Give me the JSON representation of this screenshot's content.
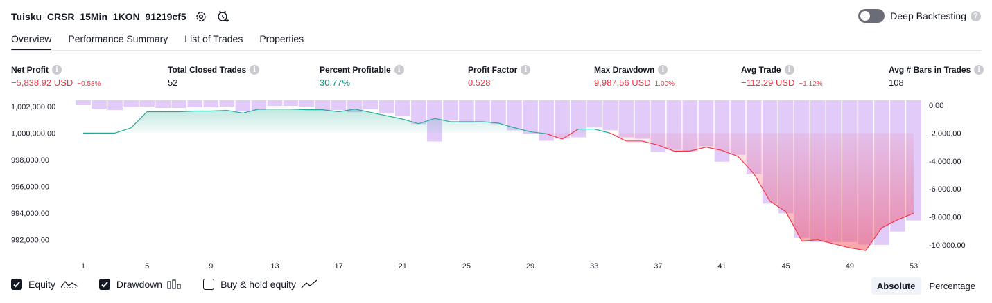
{
  "header": {
    "title": "Tuisku_CRSR_15Min_1KON_91219cf5"
  },
  "deep_backtesting": {
    "label": "Deep Backtesting",
    "help": "?"
  },
  "tabs": [
    {
      "label": "Overview"
    },
    {
      "label": "Performance Summary"
    },
    {
      "label": "List of Trades"
    },
    {
      "label": "Properties"
    }
  ],
  "metrics": [
    {
      "label": "Net Profit",
      "value": "−5,838.92 USD",
      "sub": "−0.58%",
      "color": "red"
    },
    {
      "label": "Total Closed Trades",
      "value": "52",
      "sub": "",
      "color": "dark"
    },
    {
      "label": "Percent Profitable",
      "value": "30.77%",
      "sub": "",
      "color": "green"
    },
    {
      "label": "Profit Factor",
      "value": "0.528",
      "sub": "",
      "color": "red"
    },
    {
      "label": "Max Drawdown",
      "value": "9,987.56 USD",
      "sub": "1.00%",
      "color": "red"
    },
    {
      "label": "Avg Trade",
      "value": "−112.29 USD",
      "sub": "−1.12%",
      "color": "red"
    },
    {
      "label": "Avg # Bars in Trades",
      "value": "108",
      "sub": "",
      "color": "dark"
    }
  ],
  "info_glyph": "i",
  "legend": {
    "equity": {
      "label": "Equity",
      "checked": true
    },
    "drawdown": {
      "label": "Drawdown",
      "checked": true
    },
    "buyhold": {
      "label": "Buy & hold equity",
      "checked": false
    }
  },
  "modes": {
    "absolute": "Absolute",
    "percentage": "Percentage",
    "selected": "Absolute"
  },
  "colors": {
    "equity_up_line": "#22ab94",
    "equity_down_line": "#f23645",
    "drawdown_bar": "#cfa8f5",
    "red": "#f23645",
    "green": "#089981"
  },
  "chart_data": {
    "type": "line",
    "x_ticks": [
      1,
      5,
      9,
      13,
      17,
      21,
      25,
      29,
      33,
      37,
      41,
      45,
      49,
      53
    ],
    "left_axis": {
      "ticks": [
        "1,002,000.00",
        "1,000,000.00",
        "998,000.00",
        "996,000.00",
        "994,000.00",
        "992,000.00"
      ],
      "range": [
        991100,
        1002300
      ]
    },
    "right_axis": {
      "ticks": [
        "0.00",
        "-2,000.00",
        "-4,000.00",
        "-6,000.00",
        "-8,000.00",
        "-10,000.00"
      ],
      "range": [
        -10500,
        200
      ]
    },
    "series": [
      {
        "name": "Equity",
        "x": [
          1,
          2,
          3,
          4,
          5,
          6,
          7,
          8,
          9,
          10,
          11,
          12,
          13,
          14,
          15,
          16,
          17,
          18,
          19,
          20,
          21,
          22,
          23,
          24,
          25,
          26,
          27,
          28,
          29,
          30,
          31,
          32,
          33,
          34,
          35,
          36,
          37,
          38,
          39,
          40,
          41,
          42,
          43,
          44,
          45,
          46,
          47,
          48,
          49,
          50,
          51,
          52,
          53
        ],
        "values": [
          1000000,
          1000000,
          1000000,
          1000400,
          1001600,
          1001600,
          1001600,
          1001650,
          1001650,
          1001700,
          1001500,
          1001800,
          1001800,
          1001800,
          1001750,
          1001750,
          1001600,
          1001800,
          1001550,
          1001300,
          1001050,
          1000700,
          1001100,
          1000850,
          1000850,
          1000850,
          1000750,
          1000400,
          1000100,
          999950,
          999550,
          1000300,
          1000300,
          1000000,
          999400,
          999400,
          999100,
          998650,
          998650,
          998950,
          998700,
          998250,
          996950,
          994900,
          994100,
          991900,
          992000,
          991700,
          991400,
          991200,
          992900,
          993500,
          994000
        ]
      },
      {
        "name": "Drawdown",
        "x": [
          1,
          2,
          3,
          4,
          5,
          6,
          7,
          8,
          9,
          10,
          11,
          12,
          13,
          14,
          15,
          16,
          17,
          18,
          19,
          20,
          21,
          22,
          23,
          24,
          25,
          26,
          27,
          28,
          29,
          30,
          31,
          32,
          33,
          34,
          35,
          36,
          37,
          38,
          39,
          40,
          41,
          42,
          43,
          44,
          45,
          46,
          47,
          48,
          49,
          50,
          51,
          52,
          53
        ],
        "values": [
          0,
          -250,
          -350,
          -150,
          -100,
          -200,
          -200,
          -150,
          -150,
          -100,
          -450,
          -350,
          -50,
          -50,
          -100,
          -350,
          -350,
          -500,
          -300,
          -600,
          -800,
          -1350,
          -2600,
          -1100,
          -1250,
          -1200,
          -1350,
          -1800,
          -2050,
          -2550,
          -2400,
          -2300,
          -1600,
          -1800,
          -2300,
          -2400,
          -3350,
          -3200,
          -3300,
          -2950,
          -4050,
          -3550,
          -4950,
          -7050,
          -7750,
          -9500,
          -9800,
          -9800,
          -9800,
          -9987.56,
          -10000,
          -9050,
          -8250
        ]
      }
    ]
  }
}
